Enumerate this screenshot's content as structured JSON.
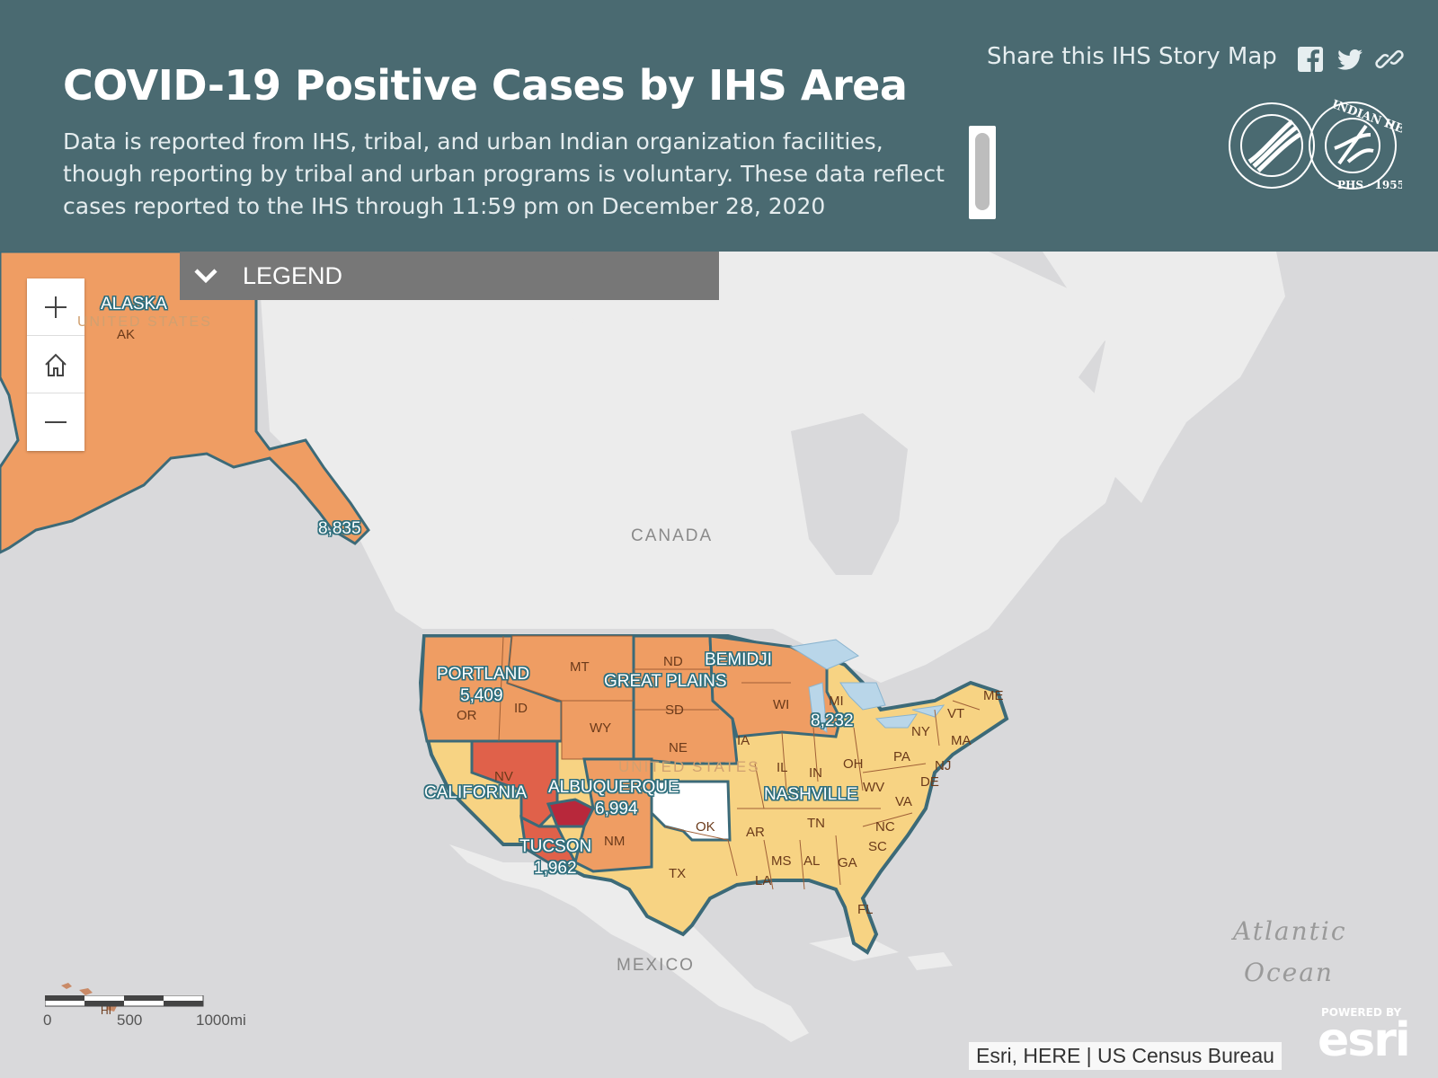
{
  "header": {
    "title": "COVID-19 Positive Cases by IHS Area",
    "description": "Data is reported from IHS, tribal, and urban Indian organization facilities, though reporting by tribal and urban programs is voluntary. These data reflect cases reported to the IHS through 11:59 pm on December 28, 2020",
    "share_label": "Share this IHS Story Map",
    "share_icons": [
      "facebook-icon",
      "twitter-icon",
      "link-icon"
    ],
    "logos": [
      "hhs-seal",
      "ihs-seal"
    ]
  },
  "legend": {
    "label": "LEGEND",
    "icon": "chevron-down-icon"
  },
  "zoom_controls": [
    "zoom-in-icon",
    "home-icon",
    "zoom-out-icon"
  ],
  "areas": [
    {
      "name": "ALASKA",
      "value": "8,835"
    },
    {
      "name": "PORTLAND",
      "value": "5,409"
    },
    {
      "name": "BEMIDJI",
      "value": "8,232"
    },
    {
      "name": "GREAT PLAINS",
      "value": ""
    },
    {
      "name": "CALIFORNIA",
      "value": ""
    },
    {
      "name": "ALBUQUERQUE",
      "value": "6,994"
    },
    {
      "name": "TUCSON",
      "value": "1,962"
    },
    {
      "name": "NASHVILLE",
      "value": ""
    }
  ],
  "states": [
    "AK",
    "MT",
    "ND",
    "OR",
    "ID",
    "WY",
    "SD",
    "NE",
    "IA",
    "WI",
    "MI",
    "NV",
    "NM",
    "OK",
    "TX",
    "AR",
    "LA",
    "MS",
    "AL",
    "GA",
    "FL",
    "TN",
    "IL",
    "IN",
    "OH",
    "PA",
    "NY",
    "WV",
    "VA",
    "NC",
    "SC",
    "NJ",
    "DE",
    "MA",
    "VT",
    "ME"
  ],
  "geo_labels": {
    "canada": "CANADA",
    "united_states": "UNITED STATES",
    "us_ak": "UNITED STATES",
    "mexico": "MEXICO",
    "hawaii": "HI"
  },
  "ocean": {
    "line1": "Atlantic",
    "line2": "Ocean"
  },
  "scale": {
    "labels": [
      "0",
      "500",
      "1000mi"
    ]
  },
  "attribution": "Esri, HERE | US Census Bureau",
  "esri": {
    "powered": "POWERED BY",
    "brand": "esri"
  },
  "colors": {
    "header": "#4a6a71",
    "high": "#e0614a",
    "highest": "#b8283b",
    "medium": "#ef9d63",
    "low": "#f7d383",
    "none": "#ffffff",
    "border": "#3c6a78",
    "land": "#ececec",
    "water": "#d9d9db"
  }
}
